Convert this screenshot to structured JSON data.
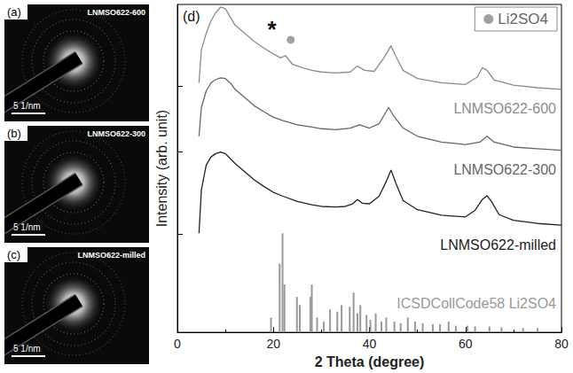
{
  "panels": [
    {
      "label": "(a)",
      "title": "LNMSO622-600",
      "scale_bar": "5 1/nm"
    },
    {
      "label": "(b)",
      "title": "LNMSO622-300",
      "scale_bar": "5 1/nm"
    },
    {
      "label": "(c)",
      "title": "LNMSO622-milled",
      "scale_bar": "5 1/nm"
    }
  ],
  "chart_data": {
    "type": "line",
    "panel_label": "(d)",
    "xlabel": "2 Theta (degree)",
    "ylabel": "Intensity (arb. unit)",
    "xlim": [
      0,
      80
    ],
    "xticks": [
      0,
      20,
      40,
      60,
      80
    ],
    "ylim": [
      0,
      100
    ],
    "yticks": [
      30,
      55,
      75
    ],
    "tick_labels": "x",
    "grid": false,
    "legend": "upper right",
    "series": [
      {
        "name": "LNMSO622-600",
        "type": "line",
        "color": "#8c8c8c",
        "x": [
          4.5,
          5,
          6,
          7,
          8,
          9,
          10,
          11,
          12,
          14,
          16,
          18,
          20,
          21.5,
          22.5,
          24,
          26,
          28,
          30,
          33,
          36,
          37.5,
          39,
          41,
          43,
          44.5,
          45.5,
          47,
          50,
          55,
          60,
          62.5,
          63.5,
          64.5,
          66,
          70,
          75,
          80
        ],
        "values": [
          76.1,
          86.2,
          91.2,
          95.0,
          97.5,
          99.2,
          98.7,
          96.2,
          93.7,
          91.2,
          88.7,
          86.7,
          84.9,
          83.7,
          84.4,
          81.7,
          80.7,
          79.9,
          79.4,
          79.1,
          79.4,
          81.2,
          79.9,
          79.6,
          83.7,
          87.4,
          84.2,
          79.9,
          77.4,
          76.1,
          75.6,
          77.9,
          80.7,
          79.9,
          76.9,
          75.4,
          74.6,
          74.1
        ]
      },
      {
        "name": "LNMSO622-300",
        "type": "line",
        "color": "#666666",
        "x": [
          4.5,
          5,
          6,
          7,
          8,
          9,
          10,
          11,
          12,
          14,
          16,
          18,
          20,
          22,
          25,
          28,
          30,
          33,
          36,
          38,
          40,
          42,
          44,
          45,
          47,
          50,
          55,
          60,
          63,
          64.5,
          66,
          70,
          75,
          80
        ],
        "values": [
          59.8,
          68.6,
          73.6,
          76.1,
          77.1,
          77.6,
          77.4,
          76.1,
          74.1,
          71.6,
          69.1,
          67.3,
          65.6,
          64.6,
          63.3,
          62.6,
          62.1,
          61.8,
          62.3,
          63.3,
          62.3,
          63.6,
          68.6,
          66.1,
          62.3,
          59.8,
          58.0,
          57.3,
          58.0,
          59.8,
          58.0,
          56.5,
          56.0,
          55.5
        ]
      },
      {
        "name": "LNMSO622-milled",
        "type": "line",
        "color": "#222222",
        "x": [
          4.5,
          5,
          6,
          7,
          8,
          9,
          10,
          11,
          12,
          14,
          16,
          18,
          20,
          22,
          25,
          28,
          30,
          33,
          35,
          36.5,
          37.5,
          38.5,
          40,
          42,
          43.5,
          44.5,
          45.5,
          47,
          50,
          55,
          60,
          62,
          63.5,
          64.5,
          65.5,
          67,
          70,
          75,
          80
        ],
        "values": [
          30.2,
          43.5,
          51.0,
          53.5,
          54.5,
          55.0,
          54.5,
          53.0,
          51.5,
          49.0,
          46.5,
          44.5,
          42.7,
          41.5,
          39.9,
          38.9,
          38.4,
          38.2,
          38.4,
          39.2,
          40.5,
          39.4,
          39.2,
          41.5,
          46.0,
          49.5,
          45.5,
          40.2,
          37.4,
          35.7,
          35.2,
          37.2,
          40.5,
          41.7,
          39.7,
          35.9,
          34.2,
          33.2,
          32.7
        ]
      },
      {
        "name": "ICSDCollCode58 Li2SO4",
        "type": "bar",
        "color": "#999999",
        "x": [
          19.5,
          21.3,
          21.9,
          22.3,
          24.9,
          25.5,
          27.7,
          28.0,
          29.1,
          30.5,
          31.8,
          33.3,
          34.2,
          35.9,
          36.7,
          37.5,
          38.1,
          39.4,
          40.2,
          41.3,
          42.5,
          43.5,
          45.2,
          46.5,
          48.0,
          49.5,
          51.1,
          53.2,
          54.7,
          56.5,
          58.0,
          60.4,
          62.0,
          65.0,
          67.5,
          72.0,
          75.0
        ],
        "values": [
          4.5,
          20.9,
          30.2,
          14.6,
          10.8,
          8.3,
          10.8,
          14.6,
          4.5,
          3.3,
          7.0,
          6.3,
          8.3,
          7.8,
          12.1,
          5.8,
          8.3,
          5.3,
          3.8,
          5.8,
          3.3,
          4.5,
          3.3,
          2.8,
          4.5,
          3.3,
          2.8,
          2.5,
          2.5,
          3.3,
          2.0,
          2.0,
          1.8,
          1.8,
          1.5,
          1.3,
          1.3
        ]
      },
      {
        "name": "Li2SO4",
        "type": "scatter",
        "marker": "circle",
        "color": "#888888",
        "x": [
          23.6
        ],
        "values": [
          89.2
        ]
      }
    ],
    "annotations": [
      {
        "text": "*",
        "x": 19.7,
        "y": 92.5
      }
    ]
  }
}
